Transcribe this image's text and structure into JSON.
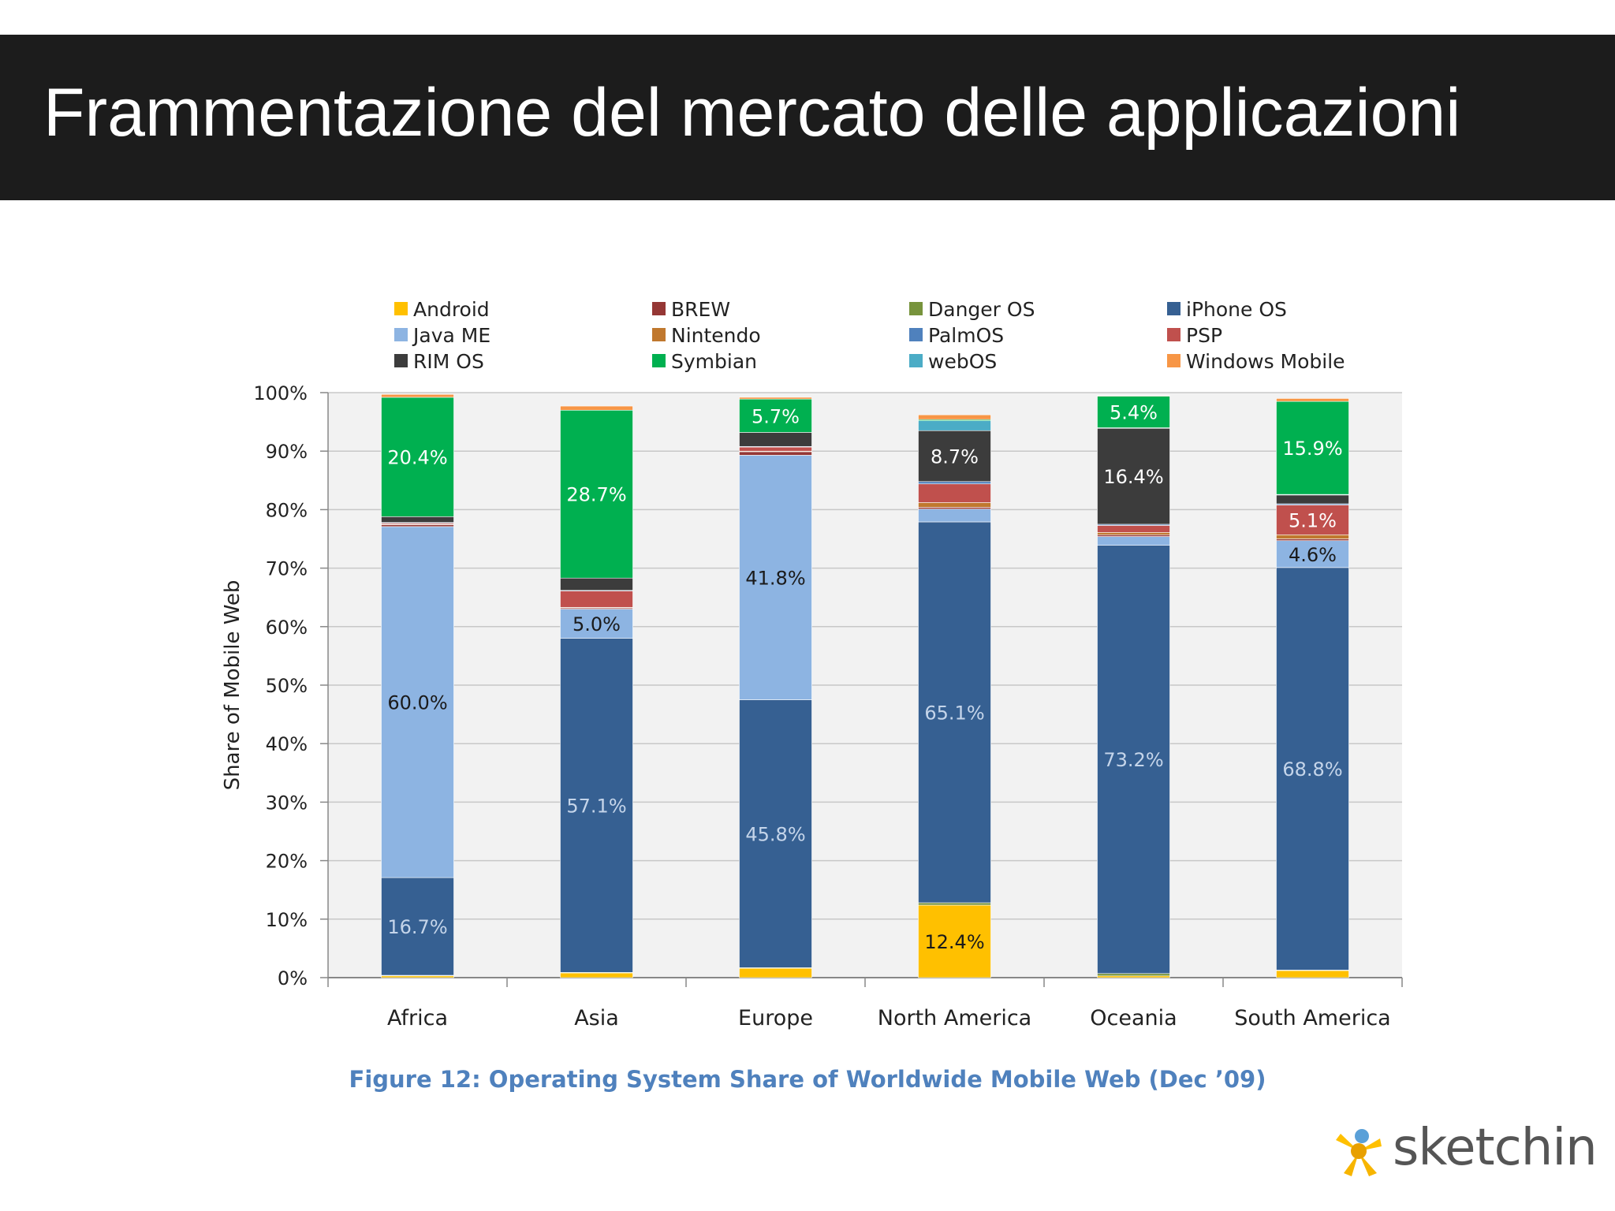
{
  "slide": {
    "title": "Frammentazione del mercato delle applicazioni"
  },
  "caption": "Figure 12: Operating System Share of Worldwide Mobile Web (Dec ’09)",
  "brand": {
    "name": "sketchin",
    "icon": "sketchin-star-logo"
  },
  "chart_data": {
    "type": "bar",
    "stacked": true,
    "ylabel": "Share of Mobile Web",
    "ylim": [
      0,
      100
    ],
    "yticks": [
      "0%",
      "10%",
      "20%",
      "30%",
      "40%",
      "50%",
      "60%",
      "70%",
      "80%",
      "90%",
      "100%"
    ],
    "grid": true,
    "legend_position": "top",
    "categories": [
      "Africa",
      "Asia",
      "Europe",
      "North America",
      "Oceania",
      "South America"
    ],
    "series": [
      {
        "name": "Android",
        "color": "#ffc000",
        "values": [
          0.3,
          0.8,
          1.6,
          12.4,
          0.3,
          1.2
        ]
      },
      {
        "name": "Danger OS",
        "color": "#77933c",
        "values": [
          0.1,
          0.1,
          0.1,
          0.4,
          0.4,
          0.1
        ]
      },
      {
        "name": "iPhone OS",
        "color": "#366092",
        "values": [
          16.7,
          57.1,
          45.8,
          65.1,
          73.2,
          68.8
        ]
      },
      {
        "name": "Java ME",
        "color": "#8db4e2",
        "values": [
          60.0,
          5.0,
          41.8,
          2.2,
          1.5,
          4.6
        ]
      },
      {
        "name": "BREW",
        "color": "#953735",
        "values": [
          0.3,
          0.2,
          0.6,
          0.3,
          0.3,
          0.3
        ]
      },
      {
        "name": "Nintendo",
        "color": "#c0782e",
        "values": [
          0.1,
          0.1,
          0.1,
          0.8,
          0.4,
          0.7
        ]
      },
      {
        "name": "PSP",
        "color": "#c0504d",
        "values": [
          0.2,
          2.8,
          0.7,
          3.2,
          1.2,
          5.1
        ]
      },
      {
        "name": "PalmOS",
        "color": "#4f81bd",
        "values": [
          0.1,
          0.1,
          0.1,
          0.4,
          0.2,
          0.2
        ]
      },
      {
        "name": "RIM OS",
        "color": "#3c3c3c",
        "values": [
          1.0,
          2.1,
          2.4,
          8.7,
          16.4,
          1.5
        ]
      },
      {
        "name": "webOS",
        "color": "#4bacc6",
        "values": [
          0.0,
          0.0,
          0.0,
          1.7,
          0.1,
          0.1
        ]
      },
      {
        "name": "Symbian",
        "color": "#00b050",
        "values": [
          20.4,
          28.7,
          5.7,
          0.2,
          5.4,
          15.9
        ]
      },
      {
        "name": "Windows Mobile",
        "color": "#f79646",
        "values": [
          0.5,
          0.7,
          0.3,
          0.8,
          0.1,
          0.5
        ]
      }
    ],
    "legend_order": [
      "Android",
      "BREW",
      "Danger OS",
      "iPhone OS",
      "Java ME",
      "Nintendo",
      "PalmOS",
      "PSP",
      "RIM OS",
      "Symbian",
      "webOS",
      "Windows Mobile"
    ],
    "data_labels": [
      {
        "category": "Africa",
        "series": "iPhone OS",
        "text": "16.7%"
      },
      {
        "category": "Africa",
        "series": "Java ME",
        "text": "60.0%"
      },
      {
        "category": "Africa",
        "series": "Symbian",
        "text": "20.4%"
      },
      {
        "category": "Asia",
        "series": "iPhone OS",
        "text": "57.1%"
      },
      {
        "category": "Asia",
        "series": "Java ME",
        "text": "5.0%"
      },
      {
        "category": "Asia",
        "series": "Symbian",
        "text": "28.7%"
      },
      {
        "category": "Europe",
        "series": "iPhone OS",
        "text": "45.8%"
      },
      {
        "category": "Europe",
        "series": "Java ME",
        "text": "41.8%"
      },
      {
        "category": "Europe",
        "series": "Symbian",
        "text": "5.7%"
      },
      {
        "category": "North America",
        "series": "Android",
        "text": "12.4%"
      },
      {
        "category": "North America",
        "series": "iPhone OS",
        "text": "65.1%"
      },
      {
        "category": "North America",
        "series": "RIM OS",
        "text": "8.7%"
      },
      {
        "category": "Oceania",
        "series": "iPhone OS",
        "text": "73.2%"
      },
      {
        "category": "Oceania",
        "series": "RIM OS",
        "text": "16.4%"
      },
      {
        "category": "Oceania",
        "series": "Symbian",
        "text": "5.4%"
      },
      {
        "category": "South America",
        "series": "iPhone OS",
        "text": "68.8%"
      },
      {
        "category": "South America",
        "series": "Java ME",
        "text": "4.6%"
      },
      {
        "category": "South America",
        "series": "PSP",
        "text": "5.1%"
      },
      {
        "category": "South America",
        "series": "Symbian",
        "text": "15.9%"
      }
    ]
  }
}
